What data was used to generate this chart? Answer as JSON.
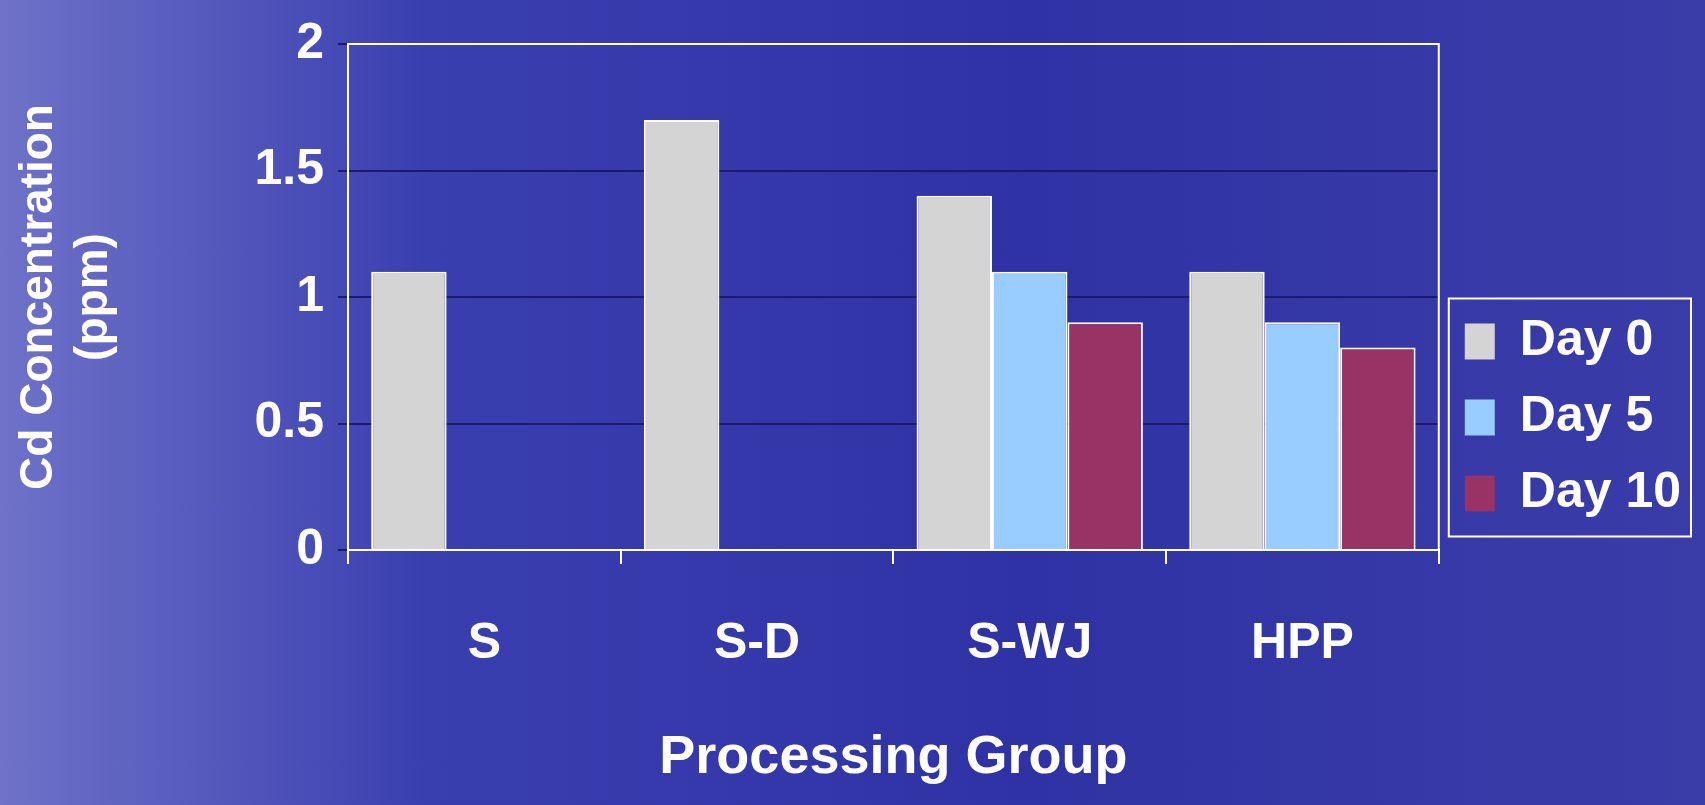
{
  "chart_data": {
    "type": "bar",
    "xlabel": "Processing Group",
    "ylabel": "Cd Concentration (ppm)",
    "categories": [
      "S",
      "S-D",
      "S-WJ",
      "HPP"
    ],
    "series": [
      {
        "name": "Day 0",
        "color": "#d4d4d4",
        "values": [
          1.1,
          1.7,
          1.4,
          1.1
        ]
      },
      {
        "name": "Day 5",
        "color": "#99ccff",
        "values": [
          null,
          null,
          1.1,
          0.9
        ]
      },
      {
        "name": "Day 10",
        "color": "#993366",
        "values": [
          null,
          null,
          0.9,
          0.8
        ]
      }
    ],
    "ylim": [
      0,
      2
    ],
    "yticks": [
      0,
      0.5,
      1,
      1.5,
      2
    ],
    "grid": "y",
    "legend": "right"
  }
}
